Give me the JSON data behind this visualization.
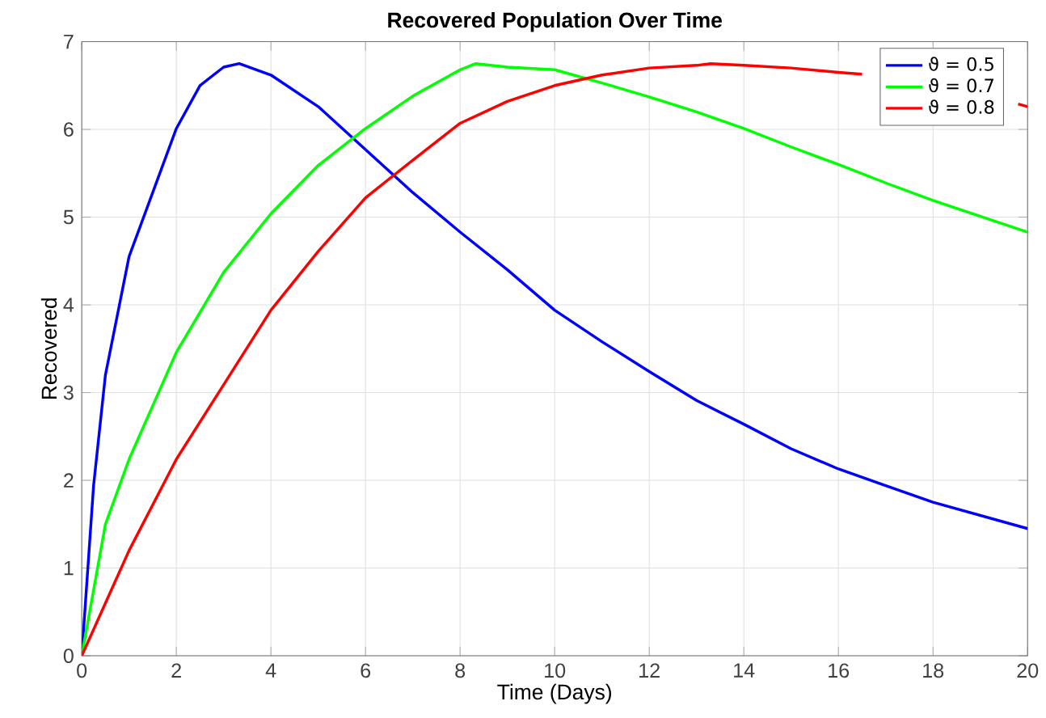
{
  "chart_data": {
    "type": "line",
    "title": "Recovered Population Over Time",
    "xlabel": "Time (Days)",
    "ylabel": "Recovered",
    "xlim": [
      0,
      20
    ],
    "ylim": [
      0,
      7
    ],
    "xticks": [
      0,
      2,
      4,
      6,
      8,
      10,
      12,
      14,
      16,
      18,
      20
    ],
    "yticks": [
      0,
      1,
      2,
      3,
      4,
      5,
      6,
      7
    ],
    "grid": true,
    "legend": "top right",
    "line_style": "solid",
    "marker": "none",
    "series": [
      {
        "name": "ϑ = 0.5",
        "color": "#0000ff",
        "x": [
          0,
          0.25,
          0.5,
          1,
          1.5,
          2,
          2.5,
          3,
          3.33,
          4,
          5,
          6,
          7,
          8,
          9,
          10,
          11,
          12,
          13,
          14,
          15,
          16,
          17,
          18,
          19,
          20
        ],
        "values": [
          0,
          1.94,
          3.2,
          4.55,
          5.28,
          6.01,
          6.5,
          6.71,
          6.75,
          6.62,
          6.26,
          5.77,
          5.28,
          4.83,
          4.4,
          3.94,
          3.58,
          3.24,
          2.91,
          2.64,
          2.36,
          2.13,
          1.94,
          1.75,
          1.6,
          1.45
        ]
      },
      {
        "name": "ϑ = 0.7",
        "color": "#00ff00",
        "x": [
          0,
          0.5,
          1,
          1.5,
          2,
          3,
          4,
          5,
          6,
          7,
          8,
          8.33,
          9,
          10,
          11,
          12,
          13,
          14,
          15,
          16,
          17,
          18,
          19,
          20
        ],
        "values": [
          0,
          1.5,
          2.24,
          2.85,
          3.46,
          4.37,
          5.04,
          5.59,
          6.01,
          6.38,
          6.68,
          6.75,
          6.71,
          6.68,
          6.53,
          6.37,
          6.2,
          6.01,
          5.8,
          5.6,
          5.39,
          5.19,
          5.01,
          4.83
        ]
      },
      {
        "name": "ϑ = 0.8",
        "color": "#ff0000",
        "x": [
          0,
          0.5,
          1,
          2,
          3,
          4,
          5,
          6,
          7,
          8,
          9,
          10,
          11,
          12,
          13,
          13.3,
          14,
          15,
          16,
          16.5,
          17,
          18,
          19,
          19.8,
          20
        ],
        "values": [
          0,
          0.6,
          1.2,
          2.24,
          3.09,
          3.94,
          4.61,
          5.22,
          5.65,
          6.07,
          6.32,
          6.5,
          6.62,
          6.7,
          6.73,
          6.75,
          6.73,
          6.7,
          6.65,
          6.63,
          null,
          null,
          null,
          6.29,
          6.26
        ]
      }
    ]
  }
}
